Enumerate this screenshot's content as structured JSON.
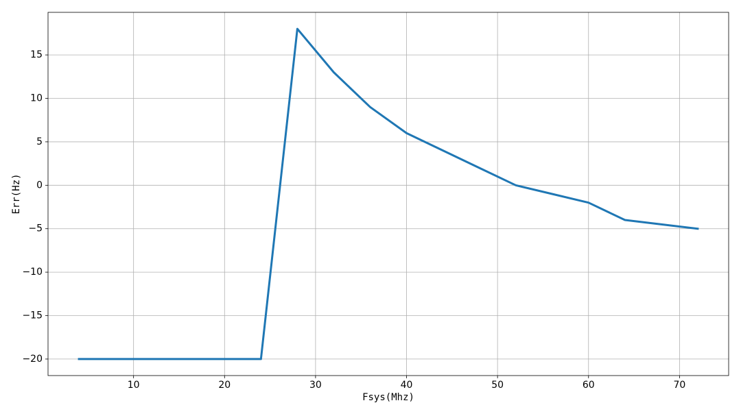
{
  "chart_data": {
    "type": "line",
    "xlabel": "Fsys(Mhz)",
    "ylabel": "Err(Hz)",
    "x": [
      4,
      8,
      12,
      16,
      20,
      24,
      28,
      32,
      36,
      40,
      44,
      48,
      52,
      56,
      60,
      64,
      68,
      72
    ],
    "series": [
      {
        "color": "#1f77b4",
        "values": [
          -20,
          -20,
          -20,
          -20,
          -20,
          -20,
          18,
          13,
          9,
          6,
          4,
          2,
          0,
          -1,
          -2,
          -4,
          -4.5,
          -5
        ]
      }
    ],
    "xlim": [
      0.6,
      75.4
    ],
    "ylim": [
      -21.9,
      19.9
    ],
    "xticks": [
      10,
      20,
      30,
      40,
      50,
      60,
      70
    ],
    "yticks": [
      {
        "value": -20,
        "label": "−20"
      },
      {
        "value": -15,
        "label": "−15"
      },
      {
        "value": -10,
        "label": "−10"
      },
      {
        "value": -5,
        "label": "−5"
      },
      0,
      5,
      10,
      15
    ],
    "grid": true
  }
}
